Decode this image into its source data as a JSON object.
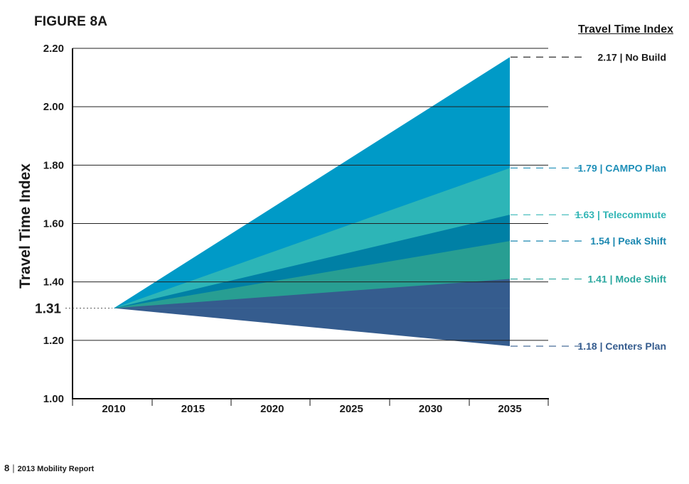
{
  "figure_label": "FIGURE 8A",
  "footer": {
    "page": "8",
    "separator": "|",
    "report": "2013 Mobility Report"
  },
  "chart_data": {
    "type": "area",
    "title": "Travel Time Index",
    "ylabel": "Travel Time Index",
    "xlabel": "",
    "x": [
      2010,
      2035
    ],
    "xticks": [
      2010,
      2015,
      2020,
      2025,
      2030,
      2035
    ],
    "xtick_labels": [
      "2010",
      "2015",
      "2020",
      "2025",
      "2030",
      "2035"
    ],
    "yticks": [
      1.0,
      1.2,
      1.4,
      1.6,
      1.8,
      2.0,
      2.2
    ],
    "ytick_labels": [
      "1.00",
      "1.20",
      "1.40",
      "1.60",
      "1.80",
      "2.00",
      "2.20"
    ],
    "ylim": [
      1.0,
      2.2
    ],
    "grid": true,
    "baseline": {
      "year": 2010,
      "value": 1.31,
      "label": "1.31"
    },
    "series": [
      {
        "name": "No Build",
        "start": 1.31,
        "end": 2.17,
        "label": "2.17 | No Build",
        "color": "#009ac7",
        "label_color": "#1a1a1a",
        "leader_color": "#1a1a1a"
      },
      {
        "name": "CAMPO Plan",
        "start": 1.31,
        "end": 1.79,
        "label": "1.79 | CAMPO Plan",
        "color": "#2db5b7",
        "label_color": "#1e8fb8",
        "leader_color": "#1e8fb8"
      },
      {
        "name": "Telecommute",
        "start": 1.31,
        "end": 1.63,
        "label": "1.63 | Telecommute",
        "color": "#0080a5",
        "label_color": "#33b6b6",
        "leader_color": "#33b6b6"
      },
      {
        "name": "Peak Shift",
        "start": 1.31,
        "end": 1.54,
        "label": "1.54 | Peak Shift",
        "color": "#289e92",
        "label_color": "#1a87b0",
        "leader_color": "#1a87b0"
      },
      {
        "name": "Mode Shift",
        "start": 1.31,
        "end": 1.41,
        "label": "1.41 | Mode Shift",
        "color": "#355c8e",
        "label_color": "#2aa79f",
        "leader_color": "#2aa79f"
      },
      {
        "name": "Centers Plan",
        "start": 1.31,
        "end": 1.18,
        "label": "1.18 | Centers Plan",
        "color": "#355c8e",
        "label_color": "#355c8e",
        "leader_color": "#355c8e"
      }
    ]
  }
}
